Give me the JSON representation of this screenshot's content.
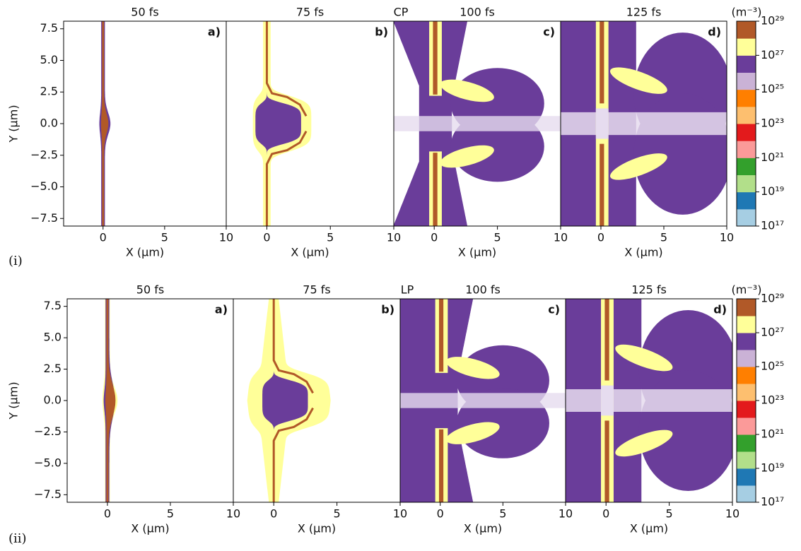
{
  "rows": [
    {
      "label": "(i)",
      "mode": "CP",
      "panels": [
        {
          "time": "50 fs",
          "tag": "a)"
        },
        {
          "time": "75 fs",
          "tag": "b)"
        },
        {
          "time": "100 fs",
          "tag": "c)"
        },
        {
          "time": "125 fs",
          "tag": "d)"
        }
      ]
    },
    {
      "label": "(ii)",
      "mode": "LP",
      "panels": [
        {
          "time": "50 fs",
          "tag": "a)"
        },
        {
          "time": "75 fs",
          "tag": "b)"
        },
        {
          "time": "100 fs",
          "tag": "c)"
        },
        {
          "time": "125 fs",
          "tag": "d)"
        }
      ]
    }
  ],
  "axes": {
    "xlabel": "X (μm)",
    "ylabel": "Y (μm)",
    "xlim": [
      -3.2,
      10
    ],
    "ylim": [
      -8.1,
      8.1
    ],
    "xticks": [
      0,
      5,
      10
    ],
    "yticks": [
      7.5,
      {
        "value": 5,
        "label": "5.0"
      },
      2.5,
      {
        "value": 0,
        "label": "0.0"
      },
      {
        "value": -2.5,
        "label": "−2.5"
      },
      {
        "value": -5,
        "label": "−5.0"
      },
      {
        "value": -7.5,
        "label": "−7.5"
      }
    ]
  },
  "colorbar": {
    "unit": "(m⁻³)",
    "scale": "log",
    "lim": [
      1e+17,
      1e+29
    ],
    "ticks": [
      {
        "value": 1e+17,
        "label": "10¹⁷"
      },
      {
        "value": 1e+19,
        "label": "10¹⁹"
      },
      {
        "value": 1e+21,
        "label": "10²¹"
      },
      {
        "value": 1e+23,
        "label": "10²³"
      },
      {
        "value": 1e+25,
        "label": "10²⁵"
      },
      {
        "value": 1e+27,
        "label": "10²⁷"
      },
      {
        "value": 1e+29,
        "label": "10²⁹"
      }
    ],
    "colors": [
      "#a6cee3",
      "#1f78b4",
      "#b2df8a",
      "#33a02c",
      "#fb9a99",
      "#e31a1c",
      "#fdbf6f",
      "#ff7f00",
      "#cab2d6",
      "#6a3d9a",
      "#ffff99",
      "#b15928"
    ]
  }
}
